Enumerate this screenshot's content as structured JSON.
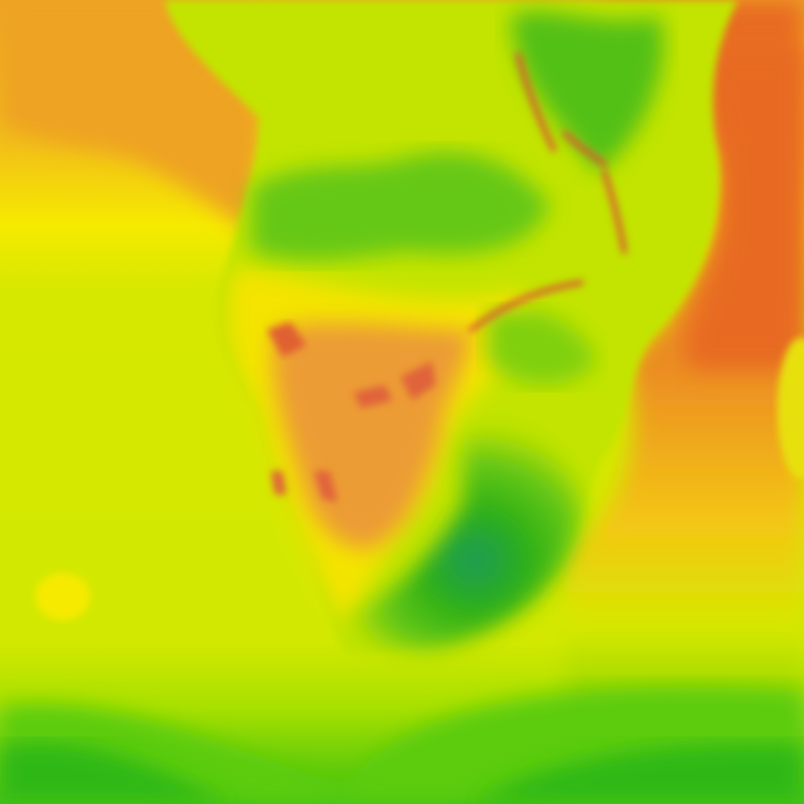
{
  "map": {
    "region": "southern-africa",
    "type": "heatmap",
    "colors": {
      "ocean_northwest": "#eea323",
      "ocean_west": "#d6e800",
      "ocean_east": "#e86a22",
      "ocean_south": "#3cbf10",
      "land_base": "#c2e400",
      "land_arid": "#ec9c34",
      "land_hot": "#e06030",
      "land_green": "#66c814",
      "land_dark_green": "#2aae1a",
      "land_teal": "#1f9a5a",
      "yellow": "#f6ea00"
    }
  }
}
